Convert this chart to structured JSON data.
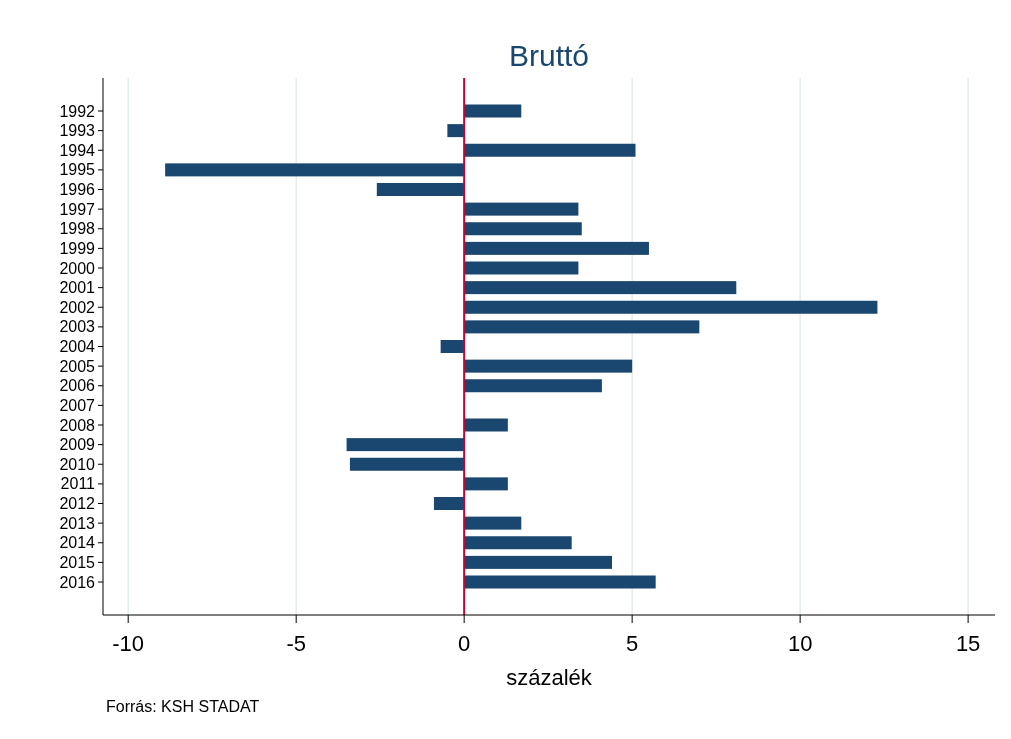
{
  "chart_data": {
    "type": "bar",
    "orientation": "horizontal",
    "title": "Bruttó",
    "xlabel": "százalék",
    "categories": [
      "1992",
      "1993",
      "1994",
      "1995",
      "1996",
      "1997",
      "1998",
      "1999",
      "2000",
      "2001",
      "2002",
      "2003",
      "2004",
      "2005",
      "2006",
      "2007",
      "2008",
      "2009",
      "2010",
      "2011",
      "2012",
      "2013",
      "2014",
      "2015",
      "2016"
    ],
    "values": [
      1.7,
      -0.5,
      5.1,
      -8.9,
      -2.6,
      3.4,
      3.5,
      5.5,
      3.4,
      8.1,
      12.3,
      7.0,
      -0.7,
      5.0,
      4.1,
      0,
      1.3,
      -3.5,
      -3.4,
      1.3,
      -0.9,
      1.7,
      3.2,
      4.4,
      5.7
    ],
    "color": "#1a476f",
    "xlim": [
      -10.75,
      15.8
    ],
    "xticks": [
      -10,
      -5,
      0,
      5,
      10,
      15
    ],
    "grid": "x",
    "ref_lines": [
      {
        "axis": "x",
        "value": 0,
        "color": "#c10534"
      }
    ],
    "annotations": [
      "Forrás: KSH STADAT"
    ]
  }
}
